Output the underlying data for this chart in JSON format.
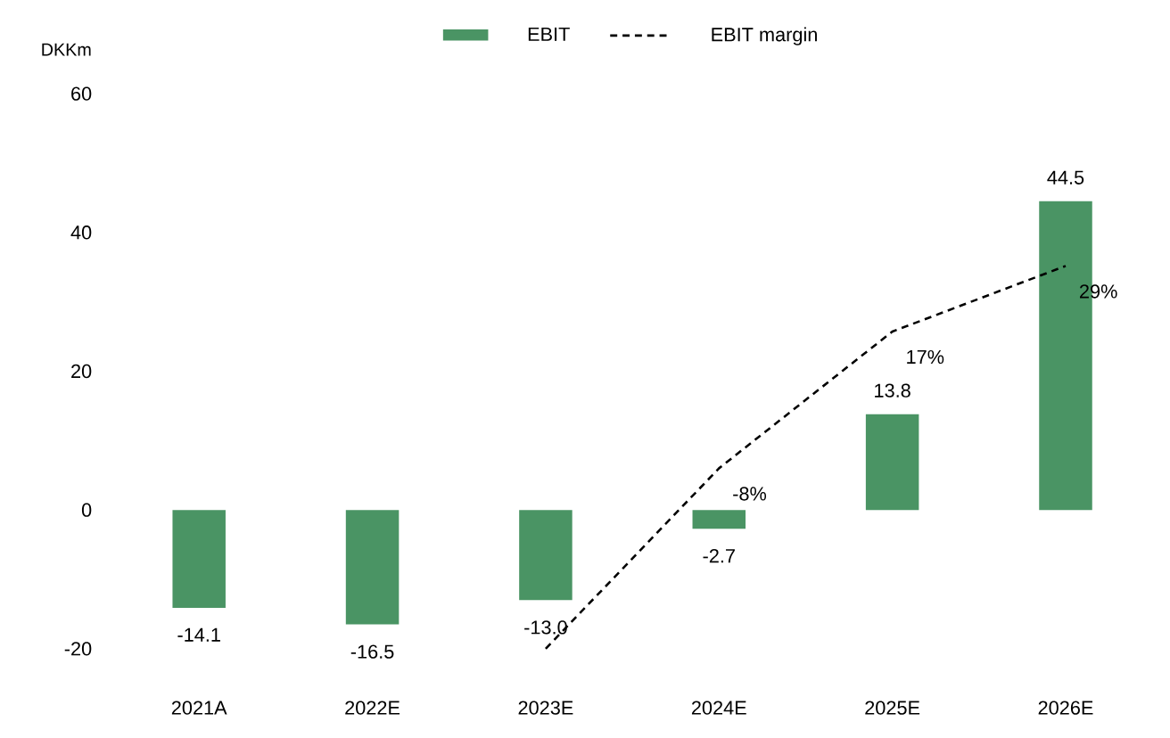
{
  "chart_data": {
    "type": "bar",
    "ylabel": "DKKm",
    "categories": [
      "2021A",
      "2022E",
      "2023E",
      "2024E",
      "2025E",
      "2026E"
    ],
    "series": [
      {
        "name": "EBIT",
        "color": "#4a9464",
        "values": [
          -14.1,
          -16.5,
          -13.0,
          -2.7,
          13.8,
          44.5
        ],
        "value_labels": [
          "-14.1",
          "-16.5",
          "-13.0",
          "-2.7",
          "13.8",
          "44.5"
        ]
      },
      {
        "name": "EBIT margin",
        "type": "line",
        "axis": "y2",
        "color": "#000000",
        "line_style": "dashed",
        "values": [
          null,
          null,
          -41,
          -8,
          17,
          29
        ],
        "value_labels": [
          null,
          null,
          null,
          "-8%",
          "17%",
          "29%"
        ]
      }
    ],
    "ylim": [
      -20,
      60
    ],
    "yticks": [
      -20,
      0,
      20,
      40,
      60
    ],
    "legend": "top",
    "grid": false
  }
}
